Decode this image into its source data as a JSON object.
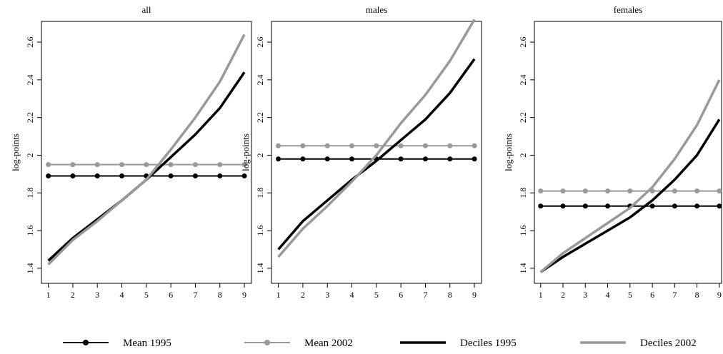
{
  "chart_data": [
    {
      "type": "line",
      "title": "all",
      "y_label": "log-points",
      "x": [
        1,
        2,
        3,
        4,
        5,
        6,
        7,
        8,
        9
      ],
      "xlim": [
        0.72,
        9.29
      ],
      "xticks": [
        1,
        2,
        3,
        4,
        5,
        6,
        7,
        8,
        9
      ],
      "ylim": [
        1.32,
        2.71
      ],
      "yticks": [
        1.4,
        1.6,
        1.8,
        2,
        2.2,
        2.4,
        2.6
      ],
      "series": [
        {
          "name": "Mean 1995",
          "color": "#000000",
          "markers": true,
          "width": 2,
          "values": [
            1.89,
            1.89,
            1.89,
            1.89,
            1.89,
            1.89,
            1.89,
            1.89,
            1.89
          ]
        },
        {
          "name": "Mean 2002",
          "color": "#999999",
          "markers": true,
          "width": 2,
          "values": [
            1.95,
            1.95,
            1.95,
            1.95,
            1.95,
            1.95,
            1.95,
            1.95,
            1.95
          ]
        },
        {
          "name": "Deciles 1995",
          "color": "#000000",
          "markers": false,
          "width": 3.5,
          "values": [
            1.44,
            1.56,
            1.66,
            1.76,
            1.87,
            1.99,
            2.11,
            2.25,
            2.44
          ]
        },
        {
          "name": "Deciles 2002",
          "color": "#999999",
          "markers": false,
          "width": 3.5,
          "values": [
            1.42,
            1.55,
            1.65,
            1.76,
            1.87,
            2.03,
            2.2,
            2.39,
            2.64
          ]
        }
      ]
    },
    {
      "type": "line",
      "title": "males",
      "y_label": "log-points",
      "x": [
        1,
        2,
        3,
        4,
        5,
        6,
        7,
        8,
        9
      ],
      "xlim": [
        0.72,
        9.29
      ],
      "xticks": [
        1,
        2,
        3,
        4,
        5,
        6,
        7,
        8,
        9
      ],
      "ylim": [
        1.32,
        2.71
      ],
      "yticks": [
        1.4,
        1.6,
        1.8,
        2,
        2.2,
        2.4,
        2.6
      ],
      "series": [
        {
          "name": "Mean 1995",
          "color": "#000000",
          "markers": true,
          "width": 2,
          "values": [
            1.98,
            1.98,
            1.98,
            1.98,
            1.98,
            1.98,
            1.98,
            1.98,
            1.98
          ]
        },
        {
          "name": "Mean 2002",
          "color": "#999999",
          "markers": true,
          "width": 2,
          "values": [
            2.05,
            2.05,
            2.05,
            2.05,
            2.05,
            2.05,
            2.05,
            2.05,
            2.05
          ]
        },
        {
          "name": "Deciles 1995",
          "color": "#000000",
          "markers": false,
          "width": 3.5,
          "values": [
            1.5,
            1.65,
            1.76,
            1.87,
            1.97,
            2.08,
            2.19,
            2.33,
            2.51
          ]
        },
        {
          "name": "Deciles 2002",
          "color": "#999999",
          "markers": false,
          "width": 3.5,
          "values": [
            1.46,
            1.61,
            1.73,
            1.86,
            2.0,
            2.17,
            2.32,
            2.5,
            2.72
          ]
        }
      ]
    },
    {
      "type": "line",
      "title": "females",
      "y_label": "log-points",
      "x": [
        1,
        2,
        3,
        4,
        5,
        6,
        7,
        8,
        9
      ],
      "xlim": [
        0.72,
        9.1
      ],
      "xticks": [
        1,
        2,
        3,
        4,
        5,
        6,
        7,
        8,
        9
      ],
      "ylim": [
        1.32,
        2.71
      ],
      "yticks": [
        1.4,
        1.6,
        1.8,
        2,
        2.2,
        2.4,
        2.6
      ],
      "series": [
        {
          "name": "Mean 1995",
          "color": "#000000",
          "markers": true,
          "width": 2,
          "values": [
            1.73,
            1.73,
            1.73,
            1.73,
            1.73,
            1.73,
            1.73,
            1.73,
            1.73
          ]
        },
        {
          "name": "Mean 2002",
          "color": "#999999",
          "markers": true,
          "width": 2,
          "values": [
            1.81,
            1.81,
            1.81,
            1.81,
            1.81,
            1.81,
            1.81,
            1.81,
            1.81
          ]
        },
        {
          "name": "Deciles 1995",
          "color": "#000000",
          "markers": false,
          "width": 3.5,
          "values": [
            1.38,
            1.46,
            1.53,
            1.6,
            1.67,
            1.76,
            1.87,
            2.0,
            2.19
          ]
        },
        {
          "name": "Deciles 2002",
          "color": "#999999",
          "markers": false,
          "width": 3.5,
          "values": [
            1.38,
            1.48,
            1.56,
            1.64,
            1.72,
            1.83,
            1.98,
            2.16,
            2.4
          ]
        }
      ]
    }
  ]
}
